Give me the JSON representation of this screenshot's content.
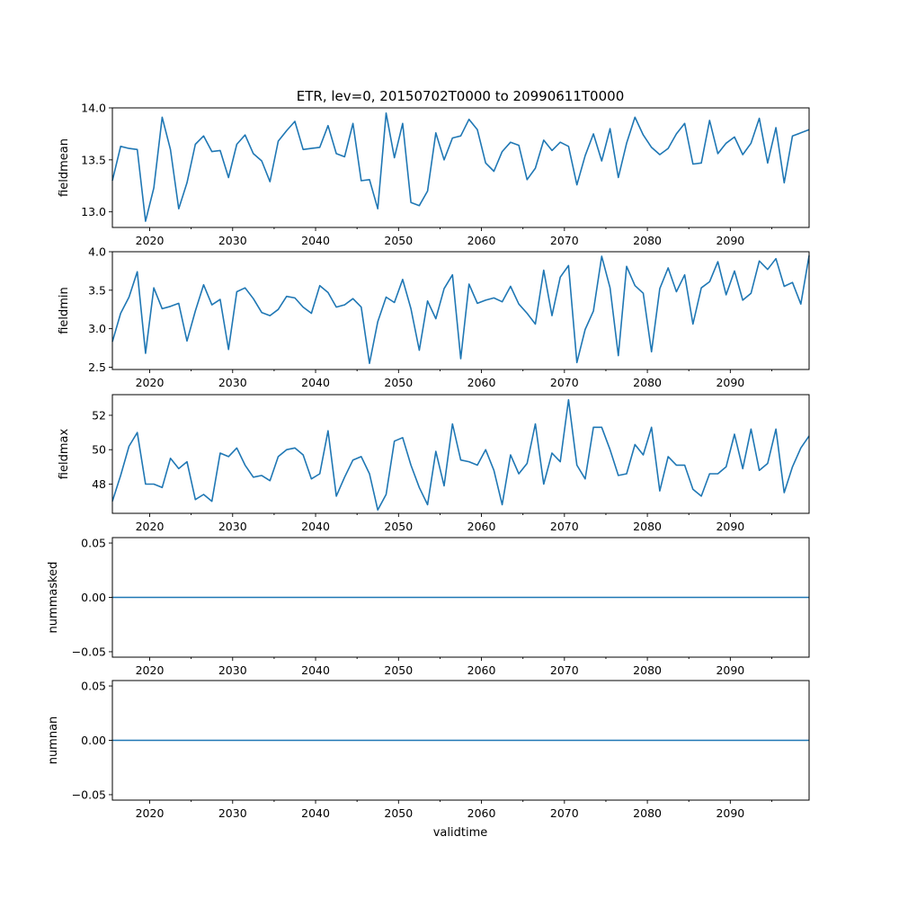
{
  "chart_data": {
    "title": "ETR, lev=0, 20150702T0000 to 20990611T0000",
    "type": "line",
    "line_color": "#1f77b4",
    "xlabel": "validtime",
    "x_years": [
      2015.5,
      2016.5,
      2017.5,
      2018.5,
      2019.5,
      2020.5,
      2021.5,
      2022.5,
      2023.5,
      2024.5,
      2025.5,
      2026.5,
      2027.5,
      2028.5,
      2029.5,
      2030.5,
      2031.5,
      2032.5,
      2033.5,
      2034.5,
      2035.5,
      2036.5,
      2037.5,
      2038.5,
      2039.5,
      2040.5,
      2041.5,
      2042.5,
      2043.5,
      2044.5,
      2045.5,
      2046.5,
      2047.5,
      2048.5,
      2049.5,
      2050.5,
      2051.5,
      2052.5,
      2053.5,
      2054.5,
      2055.5,
      2056.5,
      2057.5,
      2058.5,
      2059.5,
      2060.5,
      2061.5,
      2062.5,
      2063.5,
      2064.5,
      2065.5,
      2066.5,
      2067.5,
      2068.5,
      2069.5,
      2070.5,
      2071.5,
      2072.5,
      2073.5,
      2074.5,
      2075.5,
      2076.5,
      2077.5,
      2078.5,
      2079.5,
      2080.5,
      2081.5,
      2082.5,
      2083.5,
      2084.5,
      2085.5,
      2086.5,
      2087.5,
      2088.5,
      2089.5,
      2090.5,
      2091.5,
      2092.5,
      2093.5,
      2094.5,
      2095.5,
      2096.5,
      2097.5,
      2098.5,
      2099.5
    ],
    "xlim": [
      2015.5,
      2099.5
    ],
    "xticks": [
      2020,
      2030,
      2040,
      2050,
      2060,
      2070,
      2080,
      2090
    ],
    "xtick_labels": [
      "2020",
      "2030",
      "2040",
      "2050",
      "2060",
      "2070",
      "2080",
      "2090"
    ],
    "panels": [
      {
        "name": "fieldmean",
        "ylabel": "fieldmean",
        "ylim": [
          12.85,
          14.0
        ],
        "yticks": [
          13.0,
          13.5,
          14.0
        ],
        "ytick_labels": [
          "13.0",
          "13.5",
          "14.0"
        ],
        "values": [
          13.3,
          13.63,
          13.61,
          13.6,
          12.91,
          13.23,
          13.91,
          13.6,
          13.03,
          13.28,
          13.65,
          13.73,
          13.58,
          13.59,
          13.33,
          13.65,
          13.74,
          13.56,
          13.49,
          13.29,
          13.68,
          13.78,
          13.87,
          13.6,
          13.61,
          13.62,
          13.83,
          13.56,
          13.53,
          13.85,
          13.3,
          13.31,
          13.03,
          13.95,
          13.52,
          13.85,
          13.09,
          13.06,
          13.2,
          13.76,
          13.5,
          13.71,
          13.73,
          13.89,
          13.79,
          13.47,
          13.39,
          13.58,
          13.67,
          13.64,
          13.31,
          13.42,
          13.69,
          13.59,
          13.67,
          13.63,
          13.26,
          13.54,
          13.75,
          13.49,
          13.8,
          13.33,
          13.66,
          13.91,
          13.74,
          13.62,
          13.55,
          13.61,
          13.75,
          13.85,
          13.46,
          13.47,
          13.88,
          13.56,
          13.66,
          13.72,
          13.55,
          13.66,
          13.9,
          13.47,
          13.81,
          13.28,
          13.73,
          13.76,
          13.79
        ]
      },
      {
        "name": "fieldmin",
        "ylabel": "fieldmin",
        "ylim": [
          2.47,
          4.0
        ],
        "yticks": [
          2.5,
          3.0,
          3.5,
          4.0
        ],
        "ytick_labels": [
          "2.5",
          "3.0",
          "3.5",
          "4.0"
        ],
        "values": [
          2.83,
          3.2,
          3.41,
          3.74,
          2.68,
          3.53,
          3.26,
          3.29,
          3.33,
          2.84,
          3.23,
          3.57,
          3.31,
          3.38,
          2.73,
          3.48,
          3.53,
          3.39,
          3.21,
          3.17,
          3.25,
          3.42,
          3.4,
          3.28,
          3.2,
          3.56,
          3.47,
          3.28,
          3.31,
          3.39,
          3.28,
          2.55,
          3.09,
          3.41,
          3.34,
          3.64,
          3.26,
          2.72,
          3.36,
          3.13,
          3.52,
          3.7,
          2.61,
          3.58,
          3.33,
          3.37,
          3.4,
          3.35,
          3.55,
          3.32,
          3.2,
          3.06,
          3.76,
          3.17,
          3.67,
          3.82,
          2.56,
          2.99,
          3.23,
          3.94,
          3.53,
          2.65,
          3.81,
          3.56,
          3.46,
          2.7,
          3.52,
          3.79,
          3.48,
          3.7,
          3.06,
          3.53,
          3.61,
          3.87,
          3.44,
          3.75,
          3.37,
          3.46,
          3.88,
          3.77,
          3.91,
          3.55,
          3.6,
          3.32,
          3.95
        ]
      },
      {
        "name": "fieldmax",
        "ylabel": "fieldmax",
        "ylim": [
          46.3,
          53.2
        ],
        "yticks": [
          48,
          50,
          52
        ],
        "ytick_labels": [
          "48",
          "50",
          "52"
        ],
        "values": [
          47.0,
          48.5,
          50.2,
          51.0,
          48.0,
          48.0,
          47.8,
          49.5,
          48.9,
          49.3,
          47.1,
          47.4,
          47.0,
          49.8,
          49.6,
          50.1,
          49.1,
          48.4,
          48.5,
          48.2,
          49.6,
          50.0,
          50.1,
          49.7,
          48.3,
          48.6,
          51.1,
          47.3,
          48.4,
          49.4,
          49.6,
          48.6,
          46.5,
          47.4,
          50.5,
          50.7,
          49.1,
          47.8,
          46.8,
          49.9,
          47.9,
          51.5,
          49.4,
          49.3,
          49.1,
          50.0,
          48.8,
          46.8,
          49.7,
          48.6,
          49.2,
          51.5,
          48.0,
          49.8,
          49.3,
          52.9,
          49.1,
          48.3,
          51.3,
          51.3,
          50.0,
          48.5,
          48.6,
          50.3,
          49.7,
          51.3,
          47.6,
          49.6,
          49.1,
          49.1,
          47.7,
          47.3,
          48.6,
          48.6,
          49.0,
          50.9,
          48.9,
          51.2,
          48.8,
          49.2,
          51.2,
          47.5,
          49.0,
          50.1,
          50.8
        ]
      },
      {
        "name": "nummasked",
        "ylabel": "nummasked",
        "ylim": [
          -0.055,
          0.055
        ],
        "yticks": [
          -0.05,
          0.0,
          0.05
        ],
        "ytick_labels": [
          "−0.05",
          "0.00",
          "0.05"
        ],
        "constant": 0.0
      },
      {
        "name": "numnan",
        "ylabel": "numnan",
        "ylim": [
          -0.055,
          0.055
        ],
        "yticks": [
          -0.05,
          0.0,
          0.05
        ],
        "ytick_labels": [
          "−0.05",
          "0.00",
          "0.05"
        ],
        "constant": 0.0
      }
    ]
  }
}
